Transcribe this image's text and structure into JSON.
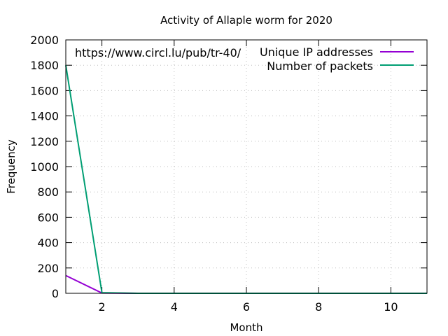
{
  "chart_data": {
    "type": "line",
    "title": "Activity of Allaple worm for 2020",
    "xlabel": "Month",
    "ylabel": "Frequency",
    "annotation": "https://www.circl.lu/pub/tr-40/",
    "xlim": [
      1,
      11
    ],
    "ylim": [
      0,
      2000
    ],
    "x_ticks": [
      2,
      4,
      6,
      8,
      10
    ],
    "y_ticks": [
      0,
      200,
      400,
      600,
      800,
      1000,
      1200,
      1400,
      1600,
      1800,
      2000
    ],
    "grid": true,
    "legend_position": "top-right",
    "x": [
      1,
      2,
      3,
      4,
      5,
      6,
      7,
      8,
      9,
      10,
      11
    ],
    "series": [
      {
        "name": "Unique IP addresses",
        "color": "#9400d3",
        "values": [
          140,
          2,
          0,
          0,
          0,
          0,
          0,
          0,
          0,
          0,
          0
        ]
      },
      {
        "name": "Number of packets",
        "color": "#009e73",
        "values": [
          1800,
          5,
          0,
          0,
          0,
          0,
          0,
          0,
          0,
          0,
          0
        ]
      }
    ]
  }
}
